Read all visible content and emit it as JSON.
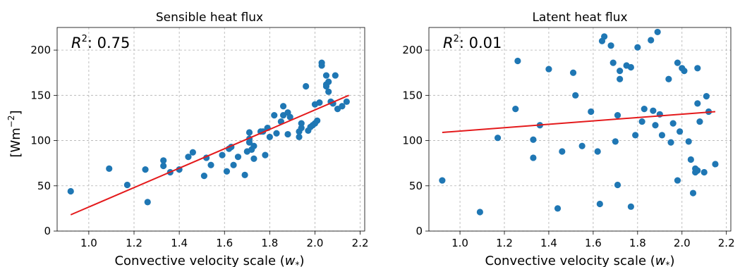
{
  "chart_data": [
    {
      "type": "scatter",
      "title": "Sensible heat flux",
      "xlabel": "Convective velocity scale (",
      "xlabel_symbol": "w",
      "xlabel_sub": "*",
      "xlabel_close": ")",
      "ylabel_text": "[Wm",
      "ylabel_sup": "−2",
      "ylabel_close": "]",
      "r2_label": "R",
      "r2_sup": "2",
      "r2_value": ": 0.75",
      "xlim": [
        0.86,
        2.22
      ],
      "ylim": [
        0,
        225
      ],
      "xticks": [
        "1.0",
        "1.2",
        "1.4",
        "1.6",
        "1.8",
        "2.0",
        "2.2"
      ],
      "yticks": [
        "0",
        "50",
        "100",
        "150",
        "200"
      ],
      "grid": true,
      "points": [
        [
          0.92,
          44
        ],
        [
          1.09,
          69
        ],
        [
          1.17,
          51
        ],
        [
          1.25,
          68
        ],
        [
          1.26,
          32
        ],
        [
          1.33,
          78
        ],
        [
          1.33,
          72
        ],
        [
          1.36,
          65
        ],
        [
          1.4,
          68
        ],
        [
          1.44,
          82
        ],
        [
          1.46,
          87
        ],
        [
          1.51,
          61
        ],
        [
          1.52,
          81
        ],
        [
          1.54,
          73
        ],
        [
          1.59,
          84
        ],
        [
          1.61,
          66
        ],
        [
          1.62,
          91
        ],
        [
          1.63,
          93
        ],
        [
          1.64,
          73
        ],
        [
          1.66,
          82
        ],
        [
          1.69,
          62
        ],
        [
          1.7,
          88
        ],
        [
          1.71,
          98
        ],
        [
          1.71,
          102
        ],
        [
          1.71,
          109
        ],
        [
          1.72,
          90
        ],
        [
          1.73,
          94
        ],
        [
          1.73,
          80
        ],
        [
          1.76,
          110
        ],
        [
          1.77,
          110
        ],
        [
          1.78,
          84
        ],
        [
          1.79,
          114
        ],
        [
          1.8,
          104
        ],
        [
          1.82,
          128
        ],
        [
          1.83,
          108
        ],
        [
          1.85,
          121
        ],
        [
          1.86,
          128
        ],
        [
          1.86,
          138
        ],
        [
          1.88,
          107
        ],
        [
          1.88,
          131
        ],
        [
          1.89,
          126
        ],
        [
          1.93,
          104
        ],
        [
          1.93,
          110
        ],
        [
          1.94,
          119
        ],
        [
          1.94,
          114
        ],
        [
          1.96,
          160
        ],
        [
          1.97,
          111
        ],
        [
          1.98,
          115
        ],
        [
          1.99,
          117
        ],
        [
          2.0,
          119
        ],
        [
          2.0,
          140
        ],
        [
          2.01,
          122
        ],
        [
          2.02,
          142
        ],
        [
          2.03,
          186
        ],
        [
          2.03,
          183
        ],
        [
          2.05,
          172
        ],
        [
          2.05,
          160
        ],
        [
          2.05,
          162
        ],
        [
          2.06,
          154
        ],
        [
          2.06,
          165
        ],
        [
          2.07,
          143
        ],
        [
          2.08,
          141
        ],
        [
          2.09,
          172
        ],
        [
          2.1,
          135
        ],
        [
          2.12,
          138
        ],
        [
          2.14,
          143
        ]
      ],
      "fit": {
        "x": [
          0.92,
          2.15
        ],
        "y": [
          18,
          150
        ]
      }
    },
    {
      "type": "scatter",
      "title": "Latent heat flux",
      "xlabel": "Convective velocity scale (",
      "xlabel_symbol": "w",
      "xlabel_sub": "*",
      "xlabel_close": ")",
      "r2_label": "R",
      "r2_sup": "2",
      "r2_value": ": 0.01",
      "xlim": [
        0.86,
        2.22
      ],
      "ylim": [
        0,
        225
      ],
      "xticks": [
        "1.0",
        "1.2",
        "1.4",
        "1.6",
        "1.8",
        "2.0",
        "2.2"
      ],
      "yticks": [
        "0",
        "50",
        "100",
        "150",
        "200"
      ],
      "grid": true,
      "points": [
        [
          0.92,
          56
        ],
        [
          1.09,
          21
        ],
        [
          1.17,
          103
        ],
        [
          1.25,
          135
        ],
        [
          1.26,
          188
        ],
        [
          1.33,
          101
        ],
        [
          1.33,
          81
        ],
        [
          1.36,
          117
        ],
        [
          1.4,
          179
        ],
        [
          1.44,
          25
        ],
        [
          1.46,
          88
        ],
        [
          1.51,
          175
        ],
        [
          1.52,
          150
        ],
        [
          1.55,
          94
        ],
        [
          1.59,
          132
        ],
        [
          1.62,
          88
        ],
        [
          1.63,
          30
        ],
        [
          1.64,
          210
        ],
        [
          1.65,
          215
        ],
        [
          1.68,
          205
        ],
        [
          1.69,
          186
        ],
        [
          1.7,
          99
        ],
        [
          1.71,
          51
        ],
        [
          1.71,
          128
        ],
        [
          1.72,
          168
        ],
        [
          1.72,
          177
        ],
        [
          1.75,
          183
        ],
        [
          1.77,
          181
        ],
        [
          1.77,
          27
        ],
        [
          1.79,
          106
        ],
        [
          1.8,
          203
        ],
        [
          1.82,
          121
        ],
        [
          1.83,
          135
        ],
        [
          1.86,
          211
        ],
        [
          1.87,
          133
        ],
        [
          1.88,
          117
        ],
        [
          1.89,
          220
        ],
        [
          1.9,
          129
        ],
        [
          1.91,
          106
        ],
        [
          1.94,
          168
        ],
        [
          1.95,
          98
        ],
        [
          1.96,
          119
        ],
        [
          1.98,
          186
        ],
        [
          1.98,
          56
        ],
        [
          1.99,
          110
        ],
        [
          2.0,
          180
        ],
        [
          2.01,
          177
        ],
        [
          2.03,
          99
        ],
        [
          2.04,
          79
        ],
        [
          2.05,
          42
        ],
        [
          2.06,
          65
        ],
        [
          2.06,
          69
        ],
        [
          2.07,
          141
        ],
        [
          2.07,
          180
        ],
        [
          2.07,
          67
        ],
        [
          2.08,
          121
        ],
        [
          2.1,
          65
        ],
        [
          2.11,
          149
        ],
        [
          2.12,
          132
        ],
        [
          2.15,
          74
        ]
      ],
      "fit": {
        "x": [
          0.92,
          2.15
        ],
        "y": [
          109,
          132
        ]
      }
    }
  ]
}
